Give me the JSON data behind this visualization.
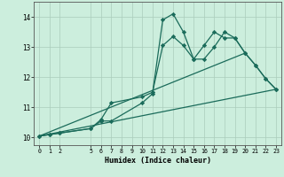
{
  "xlabel": "Humidex (Indice chaleur)",
  "bg_color": "#cceedd",
  "grid_color": "#aaccbb",
  "line_color": "#1a6b5a",
  "xlim": [
    -0.5,
    23.5
  ],
  "ylim": [
    9.75,
    14.5
  ],
  "xticks": [
    0,
    1,
    2,
    5,
    6,
    7,
    8,
    9,
    10,
    11,
    12,
    13,
    14,
    15,
    16,
    17,
    18,
    19,
    20,
    21,
    22,
    23
  ],
  "yticks": [
    10,
    11,
    12,
    13,
    14
  ],
  "line1_x": [
    0,
    1,
    2,
    5,
    6,
    7,
    10,
    11,
    12,
    13,
    14,
    15,
    16,
    17,
    18,
    19,
    20,
    21,
    22,
    23
  ],
  "line1_y": [
    10.05,
    10.1,
    10.15,
    10.3,
    10.55,
    10.55,
    11.15,
    11.45,
    13.9,
    14.1,
    13.5,
    12.6,
    12.6,
    13.0,
    13.5,
    13.3,
    12.8,
    12.4,
    11.95,
    11.6
  ],
  "line2_x": [
    0,
    1,
    2,
    5,
    6,
    7,
    10,
    11,
    12,
    13,
    14,
    15,
    16,
    17,
    18,
    19,
    20,
    21,
    22,
    23
  ],
  "line2_y": [
    10.05,
    10.1,
    10.15,
    10.3,
    10.6,
    11.15,
    11.35,
    11.5,
    13.05,
    13.35,
    13.05,
    12.6,
    13.05,
    13.5,
    13.3,
    13.3,
    12.8,
    12.4,
    11.95,
    11.6
  ],
  "line3_x": [
    0,
    23
  ],
  "line3_y": [
    10.05,
    11.6
  ],
  "line4_x": [
    0,
    20
  ],
  "line4_y": [
    10.05,
    12.8
  ]
}
